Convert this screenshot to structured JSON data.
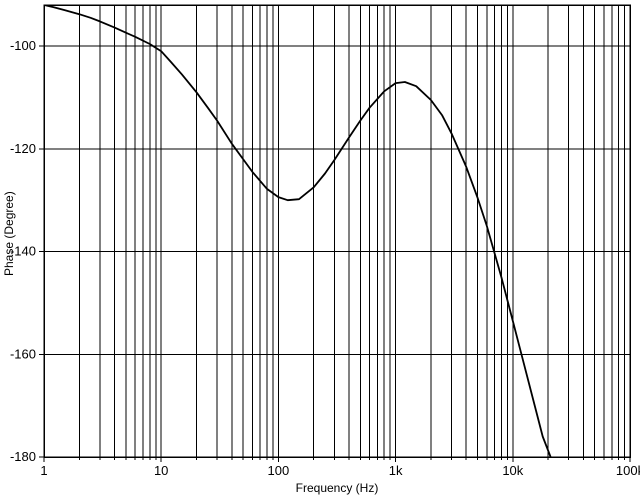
{
  "chart_data": {
    "type": "line",
    "title": "",
    "xlabel": "Frequency (Hz)",
    "ylabel": "Phase (Degree)",
    "x_scale": "log",
    "xlim": [
      1,
      100000
    ],
    "ylim": [
      -180,
      -92
    ],
    "grid": true,
    "legend": "none",
    "line_color": "#000000",
    "x_tick_labels": [
      {
        "value": 1,
        "label": "1"
      },
      {
        "value": 10,
        "label": "10"
      },
      {
        "value": 100,
        "label": "100"
      },
      {
        "value": 1000,
        "label": "1k"
      },
      {
        "value": 10000,
        "label": "10k"
      },
      {
        "value": 100000,
        "label": "100k"
      }
    ],
    "y_ticks": [
      -100,
      -120,
      -140,
      -160,
      -180
    ],
    "gridlines": {
      "h_lines": [
        -100,
        -120,
        -140,
        -160
      ],
      "v_major_decades": [
        10,
        100,
        1000,
        10000
      ],
      "v_minor_multiples": [
        2,
        3,
        4,
        5,
        6,
        7,
        8,
        9
      ]
    },
    "series": [
      {
        "name": "Phase",
        "x": [
          1,
          1.2,
          1.5,
          2,
          2.5,
          3,
          4,
          5,
          6,
          8,
          10,
          12,
          15,
          20,
          25,
          30,
          40,
          50,
          60,
          80,
          100,
          120,
          150,
          200,
          250,
          300,
          400,
          500,
          600,
          800,
          1000,
          1200,
          1500,
          2000,
          2500,
          3000,
          4000,
          5000,
          6000,
          8000,
          10000,
          12000,
          15000,
          18000,
          21000
        ],
        "y": [
          -92,
          -92.4,
          -93,
          -93.8,
          -94.5,
          -95.2,
          -96.4,
          -97.4,
          -98.2,
          -99.6,
          -101,
          -103,
          -105.5,
          -109,
          -112,
          -114.5,
          -119,
          -122,
          -124.5,
          -127.8,
          -129.4,
          -130,
          -129.8,
          -127.5,
          -124.8,
          -122.2,
          -117.8,
          -114.5,
          -112,
          -108.8,
          -107.2,
          -107,
          -107.8,
          -110.5,
          -113.5,
          -117,
          -123.5,
          -129.5,
          -135,
          -145,
          -153.5,
          -160.5,
          -169,
          -176,
          -180
        ]
      }
    ]
  }
}
